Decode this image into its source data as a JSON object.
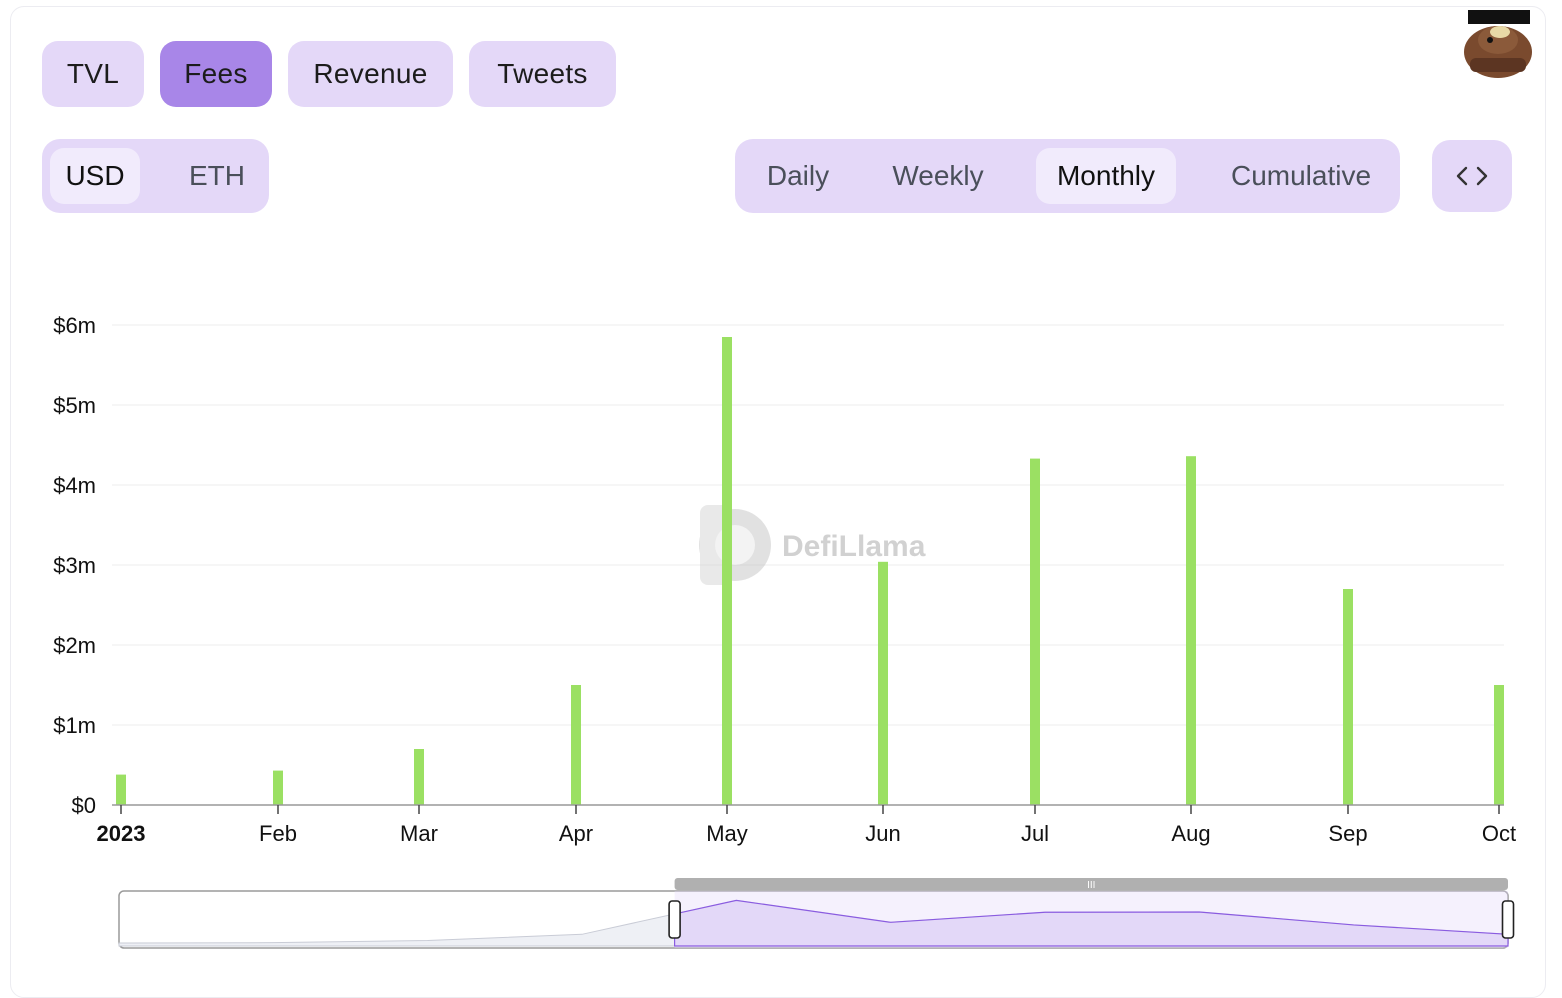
{
  "tabs": [
    {
      "label": "TVL",
      "active": false
    },
    {
      "label": "Fees",
      "active": true
    },
    {
      "label": "Revenue",
      "active": false
    },
    {
      "label": "Tweets",
      "active": false
    }
  ],
  "denomination": {
    "options": [
      "USD",
      "ETH"
    ],
    "selected": "USD"
  },
  "period": {
    "options": [
      "Daily",
      "Weekly",
      "Monthly",
      "Cumulative"
    ],
    "selected": "Monthly"
  },
  "embed_icon": "code-brackets-icon",
  "watermark": "DefiLlama",
  "colors": {
    "bar": "#9be063",
    "accent": "#a886e8",
    "pill": "#e4d8f8",
    "zoom_fill": "#e3d8f8",
    "zoom_line": "#8a5ce0"
  },
  "chart_data": {
    "type": "bar",
    "categories": [
      "2023",
      "Feb",
      "Mar",
      "Apr",
      "May",
      "Jun",
      "Jul",
      "Aug",
      "Sep",
      "Oct"
    ],
    "values": [
      0.38,
      0.43,
      0.7,
      1.5,
      5.85,
      3.04,
      4.33,
      4.36,
      2.7,
      1.5
    ],
    "y_unit": "millions USD",
    "ylim": [
      0,
      6
    ],
    "yticks": [
      "$0",
      "$1m",
      "$2m",
      "$3m",
      "$4m",
      "$5m",
      "$6m"
    ],
    "grid": true,
    "zoom_range": [
      0.4,
      1.0
    ]
  }
}
